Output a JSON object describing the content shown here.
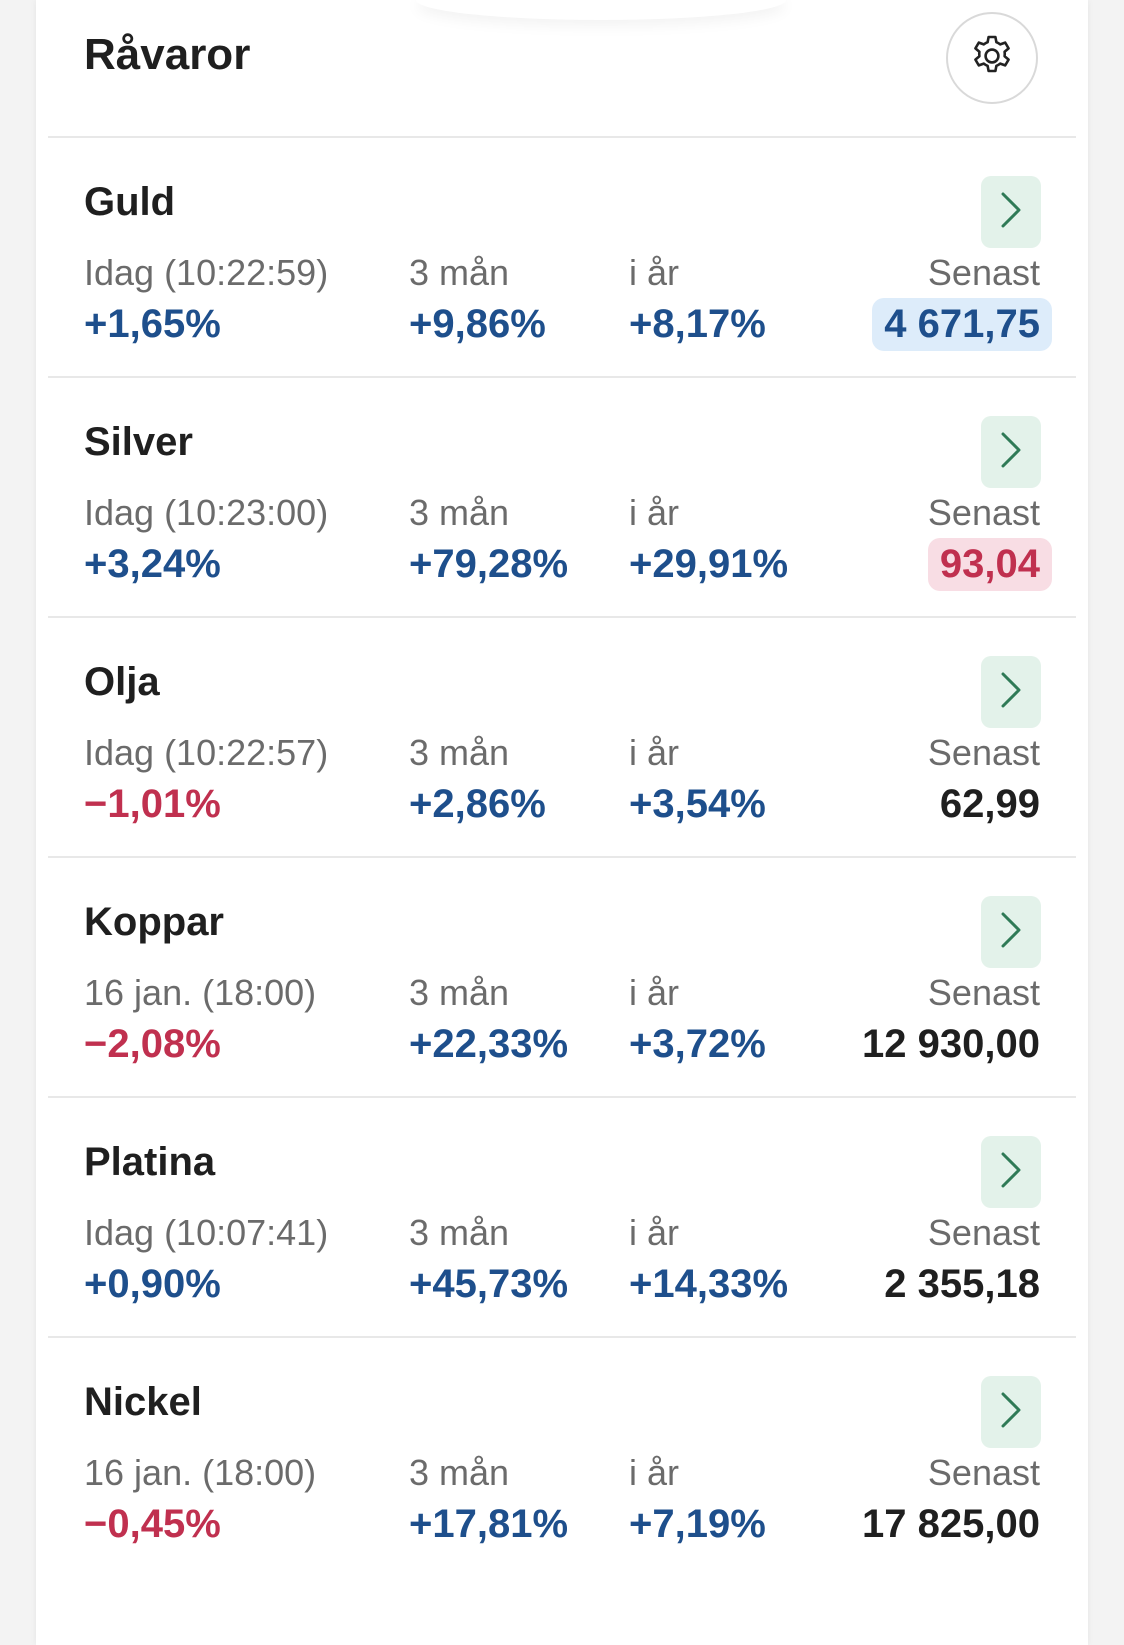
{
  "header": {
    "title": "Råvaror"
  },
  "labels": {
    "three_month": "3 mån",
    "ytd": "i år",
    "last": "Senast"
  },
  "colors": {
    "positive": "#1e4f8c",
    "negative": "#c0304f",
    "arrow": "#2f7a56"
  },
  "rows": [
    {
      "name": "Guld",
      "time": "Idag (10:22:59)",
      "today": "+1,65%",
      "today_dir": "up",
      "three_month": "+9,86%",
      "ytd": "+8,17%",
      "last": "4 671,75",
      "flash": "up"
    },
    {
      "name": "Silver",
      "time": "Idag (10:23:00)",
      "today": "+3,24%",
      "today_dir": "up",
      "three_month": "+79,28%",
      "ytd": "+29,91%",
      "last": "93,04",
      "flash": "down"
    },
    {
      "name": "Olja",
      "time": "Idag (10:22:57)",
      "today": "−1,01%",
      "today_dir": "down",
      "three_month": "+2,86%",
      "ytd": "+3,54%",
      "last": "62,99",
      "flash": "none"
    },
    {
      "name": "Koppar",
      "time": "16 jan. (18:00)",
      "today": "−2,08%",
      "today_dir": "down",
      "three_month": "+22,33%",
      "ytd": "+3,72%",
      "last": "12 930,00",
      "flash": "none"
    },
    {
      "name": "Platina",
      "time": "Idag (10:07:41)",
      "today": "+0,90%",
      "today_dir": "up",
      "three_month": "+45,73%",
      "ytd": "+14,33%",
      "last": "2 355,18",
      "flash": "none"
    },
    {
      "name": "Nickel",
      "time": "16 jan. (18:00)",
      "today": "−0,45%",
      "today_dir": "down",
      "three_month": "+17,81%",
      "ytd": "+7,19%",
      "last": "17 825,00",
      "flash": "none"
    }
  ]
}
